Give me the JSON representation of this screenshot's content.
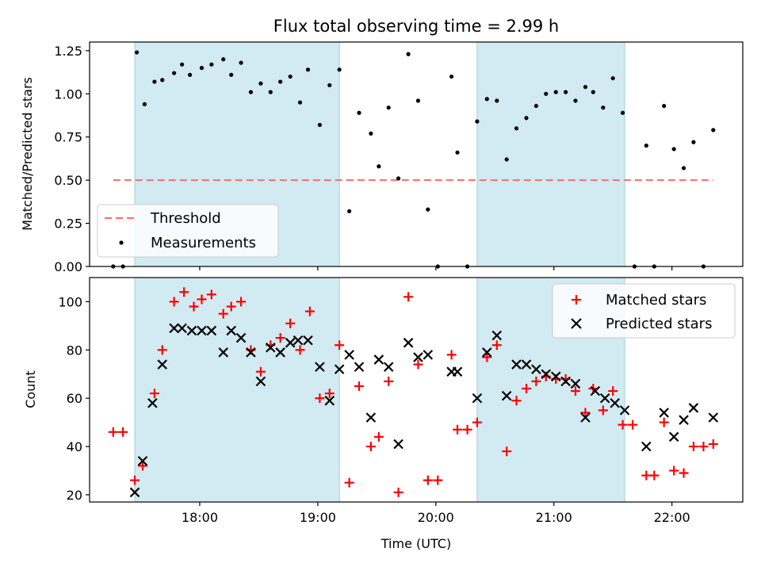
{
  "chart_data": {
    "type": "scatter",
    "title": "Flux total observing time = 2.99 h",
    "colors": {
      "shade": "#add8e6",
      "threshold": "#ff6b6b",
      "measurement": "#000000",
      "matched": "#ff0000",
      "predicted": "#000000"
    },
    "shaded_intervals_hours": [
      [
        17.45,
        19.183
      ],
      [
        20.35,
        21.6
      ]
    ],
    "x_axis": {
      "label": "Time (UTC)",
      "range_hours": [
        17.067,
        22.6
      ],
      "ticks": [
        {
          "v": 18,
          "label": "18:00"
        },
        {
          "v": 19,
          "label": "19:00"
        },
        {
          "v": 20,
          "label": "20:00"
        },
        {
          "v": 21,
          "label": "21:00"
        },
        {
          "v": 22,
          "label": "22:00"
        }
      ]
    },
    "top": {
      "ylabel": "Matched/Predicted stars",
      "ylim": [
        0,
        1.3
      ],
      "yticks": [
        "0.00",
        "0.25",
        "0.50",
        "0.75",
        "1.00",
        "1.25"
      ],
      "threshold": {
        "name": "Threshold",
        "value": 0.5,
        "x_range_hours": [
          17.267,
          22.35
        ],
        "style": "dashed"
      },
      "legend_position": "lower-left",
      "series": [
        {
          "name": "Measurements",
          "marker": "dot",
          "points": [
            [
              17.267,
              0
            ],
            [
              17.35,
              0
            ],
            [
              17.467,
              1.24
            ],
            [
              17.533,
              0.94
            ],
            [
              17.617,
              1.07
            ],
            [
              17.683,
              1.08
            ],
            [
              17.783,
              1.12
            ],
            [
              17.85,
              1.17
            ],
            [
              17.917,
              1.11
            ],
            [
              18.017,
              1.15
            ],
            [
              18.1,
              1.17
            ],
            [
              18.2,
              1.2
            ],
            [
              18.267,
              1.11
            ],
            [
              18.35,
              1.18
            ],
            [
              18.433,
              1.01
            ],
            [
              18.517,
              1.06
            ],
            [
              18.6,
              1.01
            ],
            [
              18.683,
              1.07
            ],
            [
              18.767,
              1.1
            ],
            [
              18.85,
              0.95
            ],
            [
              18.917,
              1.14
            ],
            [
              19.017,
              0.82
            ],
            [
              19.1,
              1.05
            ],
            [
              19.183,
              1.14
            ],
            [
              19.267,
              0.32
            ],
            [
              19.35,
              0.89
            ],
            [
              19.45,
              0.77
            ],
            [
              19.517,
              0.58
            ],
            [
              19.6,
              0.92
            ],
            [
              19.683,
              0.51
            ],
            [
              19.767,
              1.23
            ],
            [
              19.85,
              0.96
            ],
            [
              19.933,
              0.33
            ],
            [
              20.017,
              0
            ],
            [
              20.133,
              1.1
            ],
            [
              20.183,
              0.66
            ],
            [
              20.267,
              0
            ],
            [
              20.35,
              0.84
            ],
            [
              20.433,
              0.97
            ],
            [
              20.517,
              0.96
            ],
            [
              20.6,
              0.62
            ],
            [
              20.683,
              0.8
            ],
            [
              20.767,
              0.86
            ],
            [
              20.85,
              0.93
            ],
            [
              20.933,
              1.0
            ],
            [
              21.017,
              1.01
            ],
            [
              21.1,
              1.01
            ],
            [
              21.183,
              0.96
            ],
            [
              21.267,
              1.04
            ],
            [
              21.333,
              1.01
            ],
            [
              21.417,
              0.92
            ],
            [
              21.5,
              1.09
            ],
            [
              21.583,
              0.89
            ],
            [
              21.683,
              0
            ],
            [
              21.783,
              0.7
            ],
            [
              21.85,
              0
            ],
            [
              21.933,
              0.93
            ],
            [
              22.017,
              0.68
            ],
            [
              22.1,
              0.57
            ],
            [
              22.183,
              0.72
            ],
            [
              22.267,
              0
            ],
            [
              22.35,
              0.79
            ]
          ]
        }
      ]
    },
    "bottom": {
      "ylabel": "Count",
      "ylim": [
        17,
        110
      ],
      "yticks": [
        "20",
        "40",
        "60",
        "80",
        "100"
      ],
      "legend_position": "upper-right",
      "series": [
        {
          "name": "Matched stars",
          "marker": "plus",
          "points": [
            [
              17.267,
              46
            ],
            [
              17.35,
              46
            ],
            [
              17.45,
              26
            ],
            [
              17.517,
              32
            ],
            [
              17.617,
              62
            ],
            [
              17.683,
              80
            ],
            [
              17.783,
              100
            ],
            [
              17.867,
              104
            ],
            [
              17.95,
              98
            ],
            [
              18.017,
              101
            ],
            [
              18.1,
              103
            ],
            [
              18.2,
              95
            ],
            [
              18.267,
              98
            ],
            [
              18.35,
              100
            ],
            [
              18.433,
              80
            ],
            [
              18.517,
              71
            ],
            [
              18.6,
              82
            ],
            [
              18.683,
              85
            ],
            [
              18.767,
              91
            ],
            [
              18.85,
              80
            ],
            [
              18.933,
              96
            ],
            [
              19.017,
              60
            ],
            [
              19.1,
              62
            ],
            [
              19.183,
              82
            ],
            [
              19.267,
              25
            ],
            [
              19.35,
              65
            ],
            [
              19.45,
              40
            ],
            [
              19.517,
              44
            ],
            [
              19.6,
              67
            ],
            [
              19.683,
              21
            ],
            [
              19.767,
              102
            ],
            [
              19.85,
              74
            ],
            [
              19.933,
              26
            ],
            [
              20.017,
              26
            ],
            [
              20.133,
              78
            ],
            [
              20.183,
              47
            ],
            [
              20.267,
              47
            ],
            [
              20.35,
              50
            ],
            [
              20.433,
              77
            ],
            [
              20.517,
              82
            ],
            [
              20.6,
              38
            ],
            [
              20.683,
              59
            ],
            [
              20.767,
              64
            ],
            [
              20.85,
              67
            ],
            [
              20.933,
              69
            ],
            [
              21.017,
              68
            ],
            [
              21.1,
              68
            ],
            [
              21.183,
              63
            ],
            [
              21.267,
              54
            ],
            [
              21.333,
              64
            ],
            [
              21.417,
              55
            ],
            [
              21.5,
              63
            ],
            [
              21.583,
              49
            ],
            [
              21.667,
              49
            ],
            [
              21.783,
              28
            ],
            [
              21.85,
              28
            ],
            [
              21.933,
              50
            ],
            [
              22.017,
              30
            ],
            [
              22.1,
              29
            ],
            [
              22.183,
              40
            ],
            [
              22.267,
              40
            ],
            [
              22.35,
              41
            ]
          ]
        },
        {
          "name": "Predicted stars",
          "marker": "x",
          "points": [
            [
              17.45,
              21
            ],
            [
              17.517,
              34
            ],
            [
              17.6,
              58
            ],
            [
              17.683,
              74
            ],
            [
              17.783,
              89
            ],
            [
              17.85,
              89
            ],
            [
              17.933,
              88
            ],
            [
              18.017,
              88
            ],
            [
              18.1,
              88
            ],
            [
              18.2,
              79
            ],
            [
              18.267,
              88
            ],
            [
              18.35,
              85
            ],
            [
              18.433,
              79
            ],
            [
              18.517,
              67
            ],
            [
              18.6,
              81
            ],
            [
              18.683,
              79
            ],
            [
              18.767,
              83
            ],
            [
              18.833,
              84
            ],
            [
              18.917,
              84
            ],
            [
              19.017,
              73
            ],
            [
              19.1,
              59
            ],
            [
              19.183,
              72
            ],
            [
              19.267,
              78
            ],
            [
              19.35,
              73
            ],
            [
              19.45,
              52
            ],
            [
              19.517,
              76
            ],
            [
              19.6,
              73
            ],
            [
              19.683,
              41
            ],
            [
              19.767,
              83
            ],
            [
              19.85,
              77
            ],
            [
              19.933,
              78
            ],
            [
              20.133,
              71
            ],
            [
              20.183,
              71
            ],
            [
              20.35,
              60
            ],
            [
              20.433,
              79
            ],
            [
              20.517,
              86
            ],
            [
              20.6,
              61
            ],
            [
              20.683,
              74
            ],
            [
              20.767,
              74
            ],
            [
              20.85,
              72
            ],
            [
              20.933,
              70
            ],
            [
              21.017,
              69
            ],
            [
              21.1,
              67
            ],
            [
              21.183,
              66
            ],
            [
              21.267,
              52
            ],
            [
              21.35,
              63
            ],
            [
              21.433,
              60
            ],
            [
              21.517,
              58
            ],
            [
              21.6,
              55
            ],
            [
              21.783,
              40
            ],
            [
              21.933,
              54
            ],
            [
              22.017,
              44
            ],
            [
              22.1,
              51
            ],
            [
              22.183,
              56
            ],
            [
              22.35,
              52
            ]
          ]
        }
      ]
    }
  }
}
